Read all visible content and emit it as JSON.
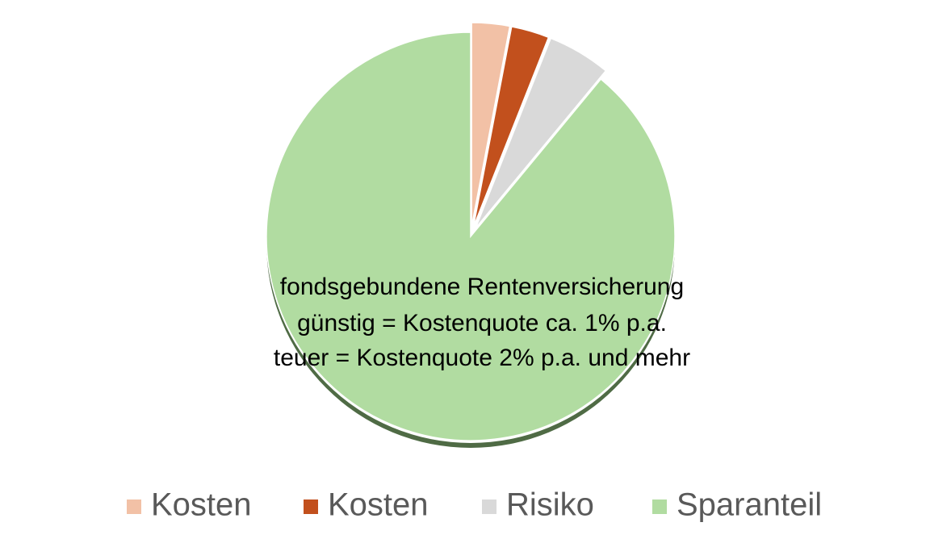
{
  "chart_data": {
    "type": "pie",
    "categories": [
      "Kosten",
      "Kosten",
      "Risiko",
      "Sparanteil"
    ],
    "values": [
      3,
      3,
      5,
      89
    ],
    "colors": [
      "#f2c1a6",
      "#c2501d",
      "#d9d9d9",
      "#b1dca1"
    ],
    "exploded": [
      true,
      true,
      true,
      false
    ],
    "annotation": [
      "fondsgebundene Rentenversicherung",
      "günstig = Kostenquote ca. 1% p.a.",
      "teuer = Kostenquote 2% p.a. und mehr"
    ],
    "legend": "bottom"
  }
}
